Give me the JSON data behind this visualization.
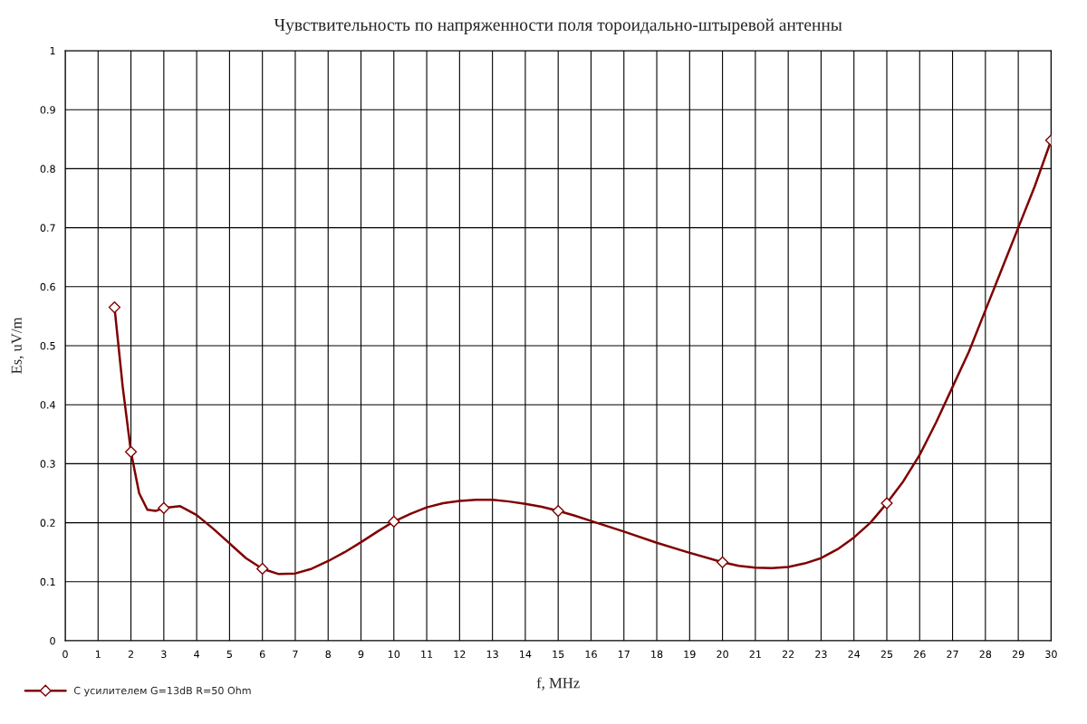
{
  "chart_data": {
    "type": "line",
    "title": "Чувствительность по напряженности поля тороидально-штыревой антенны",
    "xlabel": "f, MHz",
    "ylabel": "Es, uV/m",
    "series": [
      {
        "color": "#800000",
        "x": [
          1.5,
          1.75,
          2,
          2.25,
          2.5,
          2.75,
          3,
          3.5,
          4,
          4.5,
          5,
          5.5,
          6,
          6.5,
          7,
          7.5,
          8,
          8.5,
          9,
          9.5,
          10,
          10.5,
          11,
          11.5,
          12,
          12.5,
          13,
          13.5,
          14,
          14.5,
          15,
          15.5,
          16,
          17,
          18,
          19,
          20,
          20.5,
          21,
          21.5,
          22,
          22.5,
          23,
          23.5,
          24,
          24.5,
          25,
          25.5,
          26,
          26.5,
          27,
          27.5,
          28,
          28.5,
          29,
          29.5,
          30
        ],
        "values": [
          0.565,
          0.43,
          0.32,
          0.25,
          0.222,
          0.22,
          0.225,
          0.228,
          0.213,
          0.19,
          0.165,
          0.14,
          0.122,
          0.113,
          0.114,
          0.122,
          0.135,
          0.15,
          0.167,
          0.185,
          0.202,
          0.215,
          0.226,
          0.233,
          0.237,
          0.239,
          0.239,
          0.236,
          0.232,
          0.227,
          0.22,
          0.212,
          0.203,
          0.185,
          0.166,
          0.149,
          0.133,
          0.127,
          0.124,
          0.123,
          0.125,
          0.131,
          0.14,
          0.155,
          0.175,
          0.2,
          0.233,
          0.27,
          0.315,
          0.37,
          0.43,
          0.49,
          0.56,
          0.63,
          0.7,
          0.77,
          0.848
        ]
      },
      {
        "type": "scatter",
        "name": "С усилителем G=13dB R=50 Ohm",
        "color": "#800000",
        "marker": "diamond",
        "x": [
          1.5,
          2,
          3,
          6,
          10,
          15,
          20,
          25,
          30
        ],
        "values": [
          0.565,
          0.32,
          0.225,
          0.122,
          0.202,
          0.22,
          0.133,
          0.233,
          0.848
        ]
      }
    ],
    "xlim": [
      0,
      30
    ],
    "xticks": [
      0,
      1,
      2,
      3,
      4,
      5,
      6,
      7,
      8,
      9,
      10,
      11,
      12,
      13,
      14,
      15,
      16,
      17,
      18,
      19,
      20,
      21,
      22,
      23,
      24,
      25,
      26,
      27,
      28,
      29,
      30
    ],
    "ylim": [
      0,
      1
    ],
    "yticks": [
      0,
      0.1,
      0.2,
      0.3,
      0.4,
      0.5,
      0.6,
      0.7,
      0.8,
      0.9,
      1
    ],
    "grid": true,
    "legend": "bottom left",
    "line_style": "solid"
  }
}
